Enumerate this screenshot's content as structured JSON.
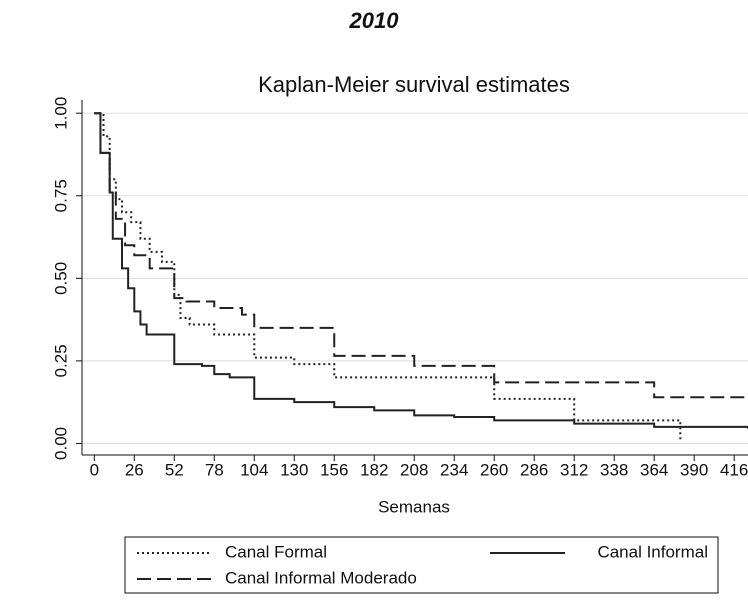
{
  "chart_data": {
    "type": "line",
    "step": true,
    "title": "2010",
    "subtitle": "Kaplan-Meier survival estimates",
    "x_label": "Semanas",
    "xlim": [
      -8,
      425
    ],
    "ylim": [
      -0.035,
      1.04
    ],
    "xticks": [
      0,
      26,
      52,
      78,
      104,
      130,
      156,
      182,
      208,
      234,
      260,
      286,
      312,
      338,
      364,
      390,
      416
    ],
    "yticks": [
      {
        "value": 0,
        "label": "0.00"
      },
      {
        "value": 0.25,
        "label": "0.25"
      },
      {
        "value": 0.5,
        "label": "0.50"
      },
      {
        "value": 0.75,
        "label": "0.75"
      },
      {
        "value": 1,
        "label": "1.00"
      }
    ],
    "grid": true,
    "legend": "bottom",
    "series": [
      {
        "name": "Canal Formal",
        "color": "#222222",
        "style": "dotted",
        "x": [
          0,
          6,
          10,
          14,
          18,
          24,
          30,
          36,
          44,
          52,
          56,
          62,
          78,
          104,
          130,
          156,
          260,
          312,
          381
        ],
        "values": [
          1.0,
          0.93,
          0.8,
          0.74,
          0.7,
          0.67,
          0.62,
          0.58,
          0.55,
          0.45,
          0.38,
          0.36,
          0.33,
          0.26,
          0.24,
          0.2,
          0.135,
          0.07,
          0.01
        ]
      },
      {
        "name": "Canal Informal",
        "color": "#222222",
        "style": "solid",
        "x": [
          0,
          4,
          10,
          12,
          18,
          22,
          26,
          30,
          34,
          52,
          70,
          78,
          88,
          104,
          130,
          156,
          182,
          208,
          234,
          260,
          312,
          364,
          425
        ],
        "values": [
          1.0,
          0.88,
          0.76,
          0.62,
          0.53,
          0.47,
          0.4,
          0.36,
          0.33,
          0.24,
          0.235,
          0.21,
          0.2,
          0.135,
          0.125,
          0.11,
          0.1,
          0.085,
          0.08,
          0.07,
          0.06,
          0.05,
          0.045
        ]
      },
      {
        "name": "Canal Informal Moderado",
        "color": "#222222",
        "style": "dashed",
        "x": [
          0,
          4,
          10,
          14,
          20,
          26,
          36,
          52,
          60,
          78,
          96,
          104,
          156,
          208,
          260,
          364,
          425
        ],
        "values": [
          1.0,
          0.88,
          0.76,
          0.68,
          0.6,
          0.57,
          0.53,
          0.44,
          0.43,
          0.41,
          0.39,
          0.35,
          0.265,
          0.235,
          0.185,
          0.14,
          0.14
        ]
      }
    ]
  }
}
